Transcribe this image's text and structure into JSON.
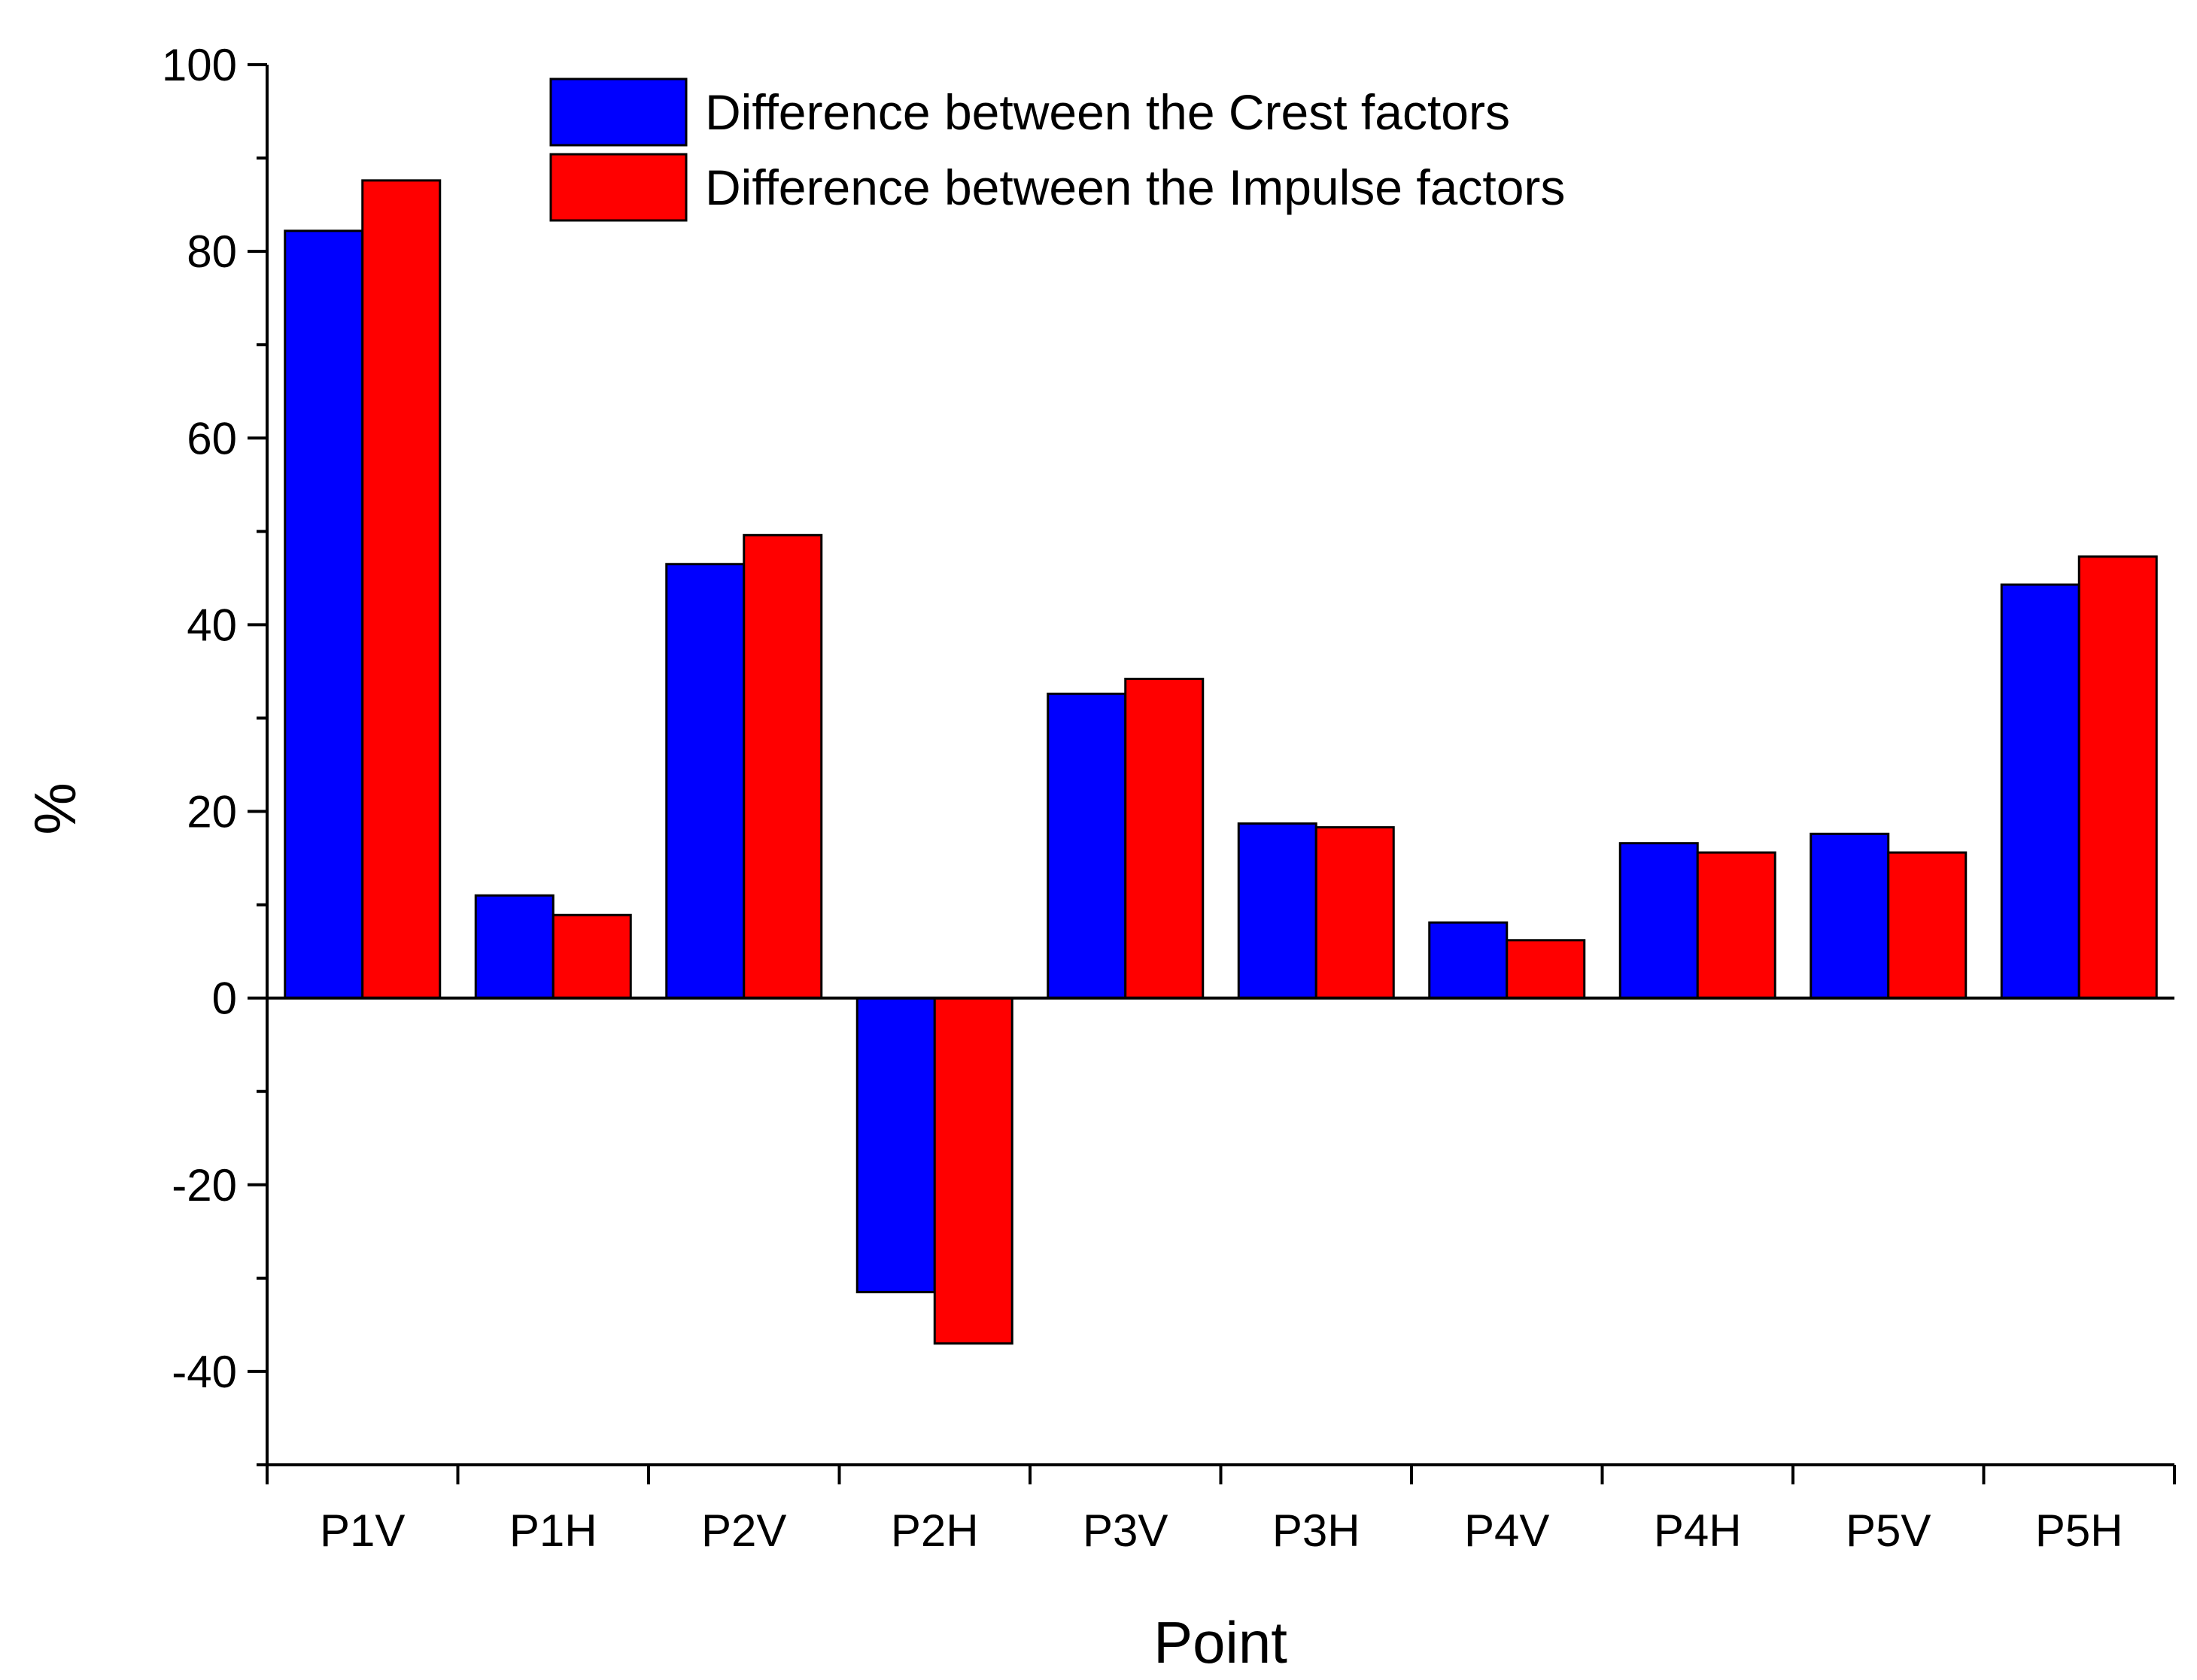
{
  "chart_data": {
    "type": "bar",
    "title": "",
    "xlabel": "Point",
    "ylabel": "%",
    "ylim": [
      -50,
      100
    ],
    "yticks": [
      -40,
      -20,
      0,
      20,
      40,
      60,
      80,
      100
    ],
    "grid": false,
    "legend_position": "top-center",
    "categories": [
      "P1V",
      "P1H",
      "P2V",
      "P2H",
      "P3V",
      "P3H",
      "P4V",
      "P4H",
      "P5V",
      "P5H"
    ],
    "series": [
      {
        "name": "Difference between the Crest factors",
        "color": "#0000ff",
        "values": [
          82.2,
          11.0,
          46.5,
          -31.5,
          32.6,
          18.7,
          8.1,
          16.6,
          17.6,
          44.3
        ]
      },
      {
        "name": "Difference between the Impulse factors",
        "color": "#ff0000",
        "values": [
          87.6,
          8.9,
          49.6,
          -37.0,
          34.2,
          18.3,
          6.2,
          15.6,
          15.6,
          47.3
        ]
      }
    ]
  }
}
